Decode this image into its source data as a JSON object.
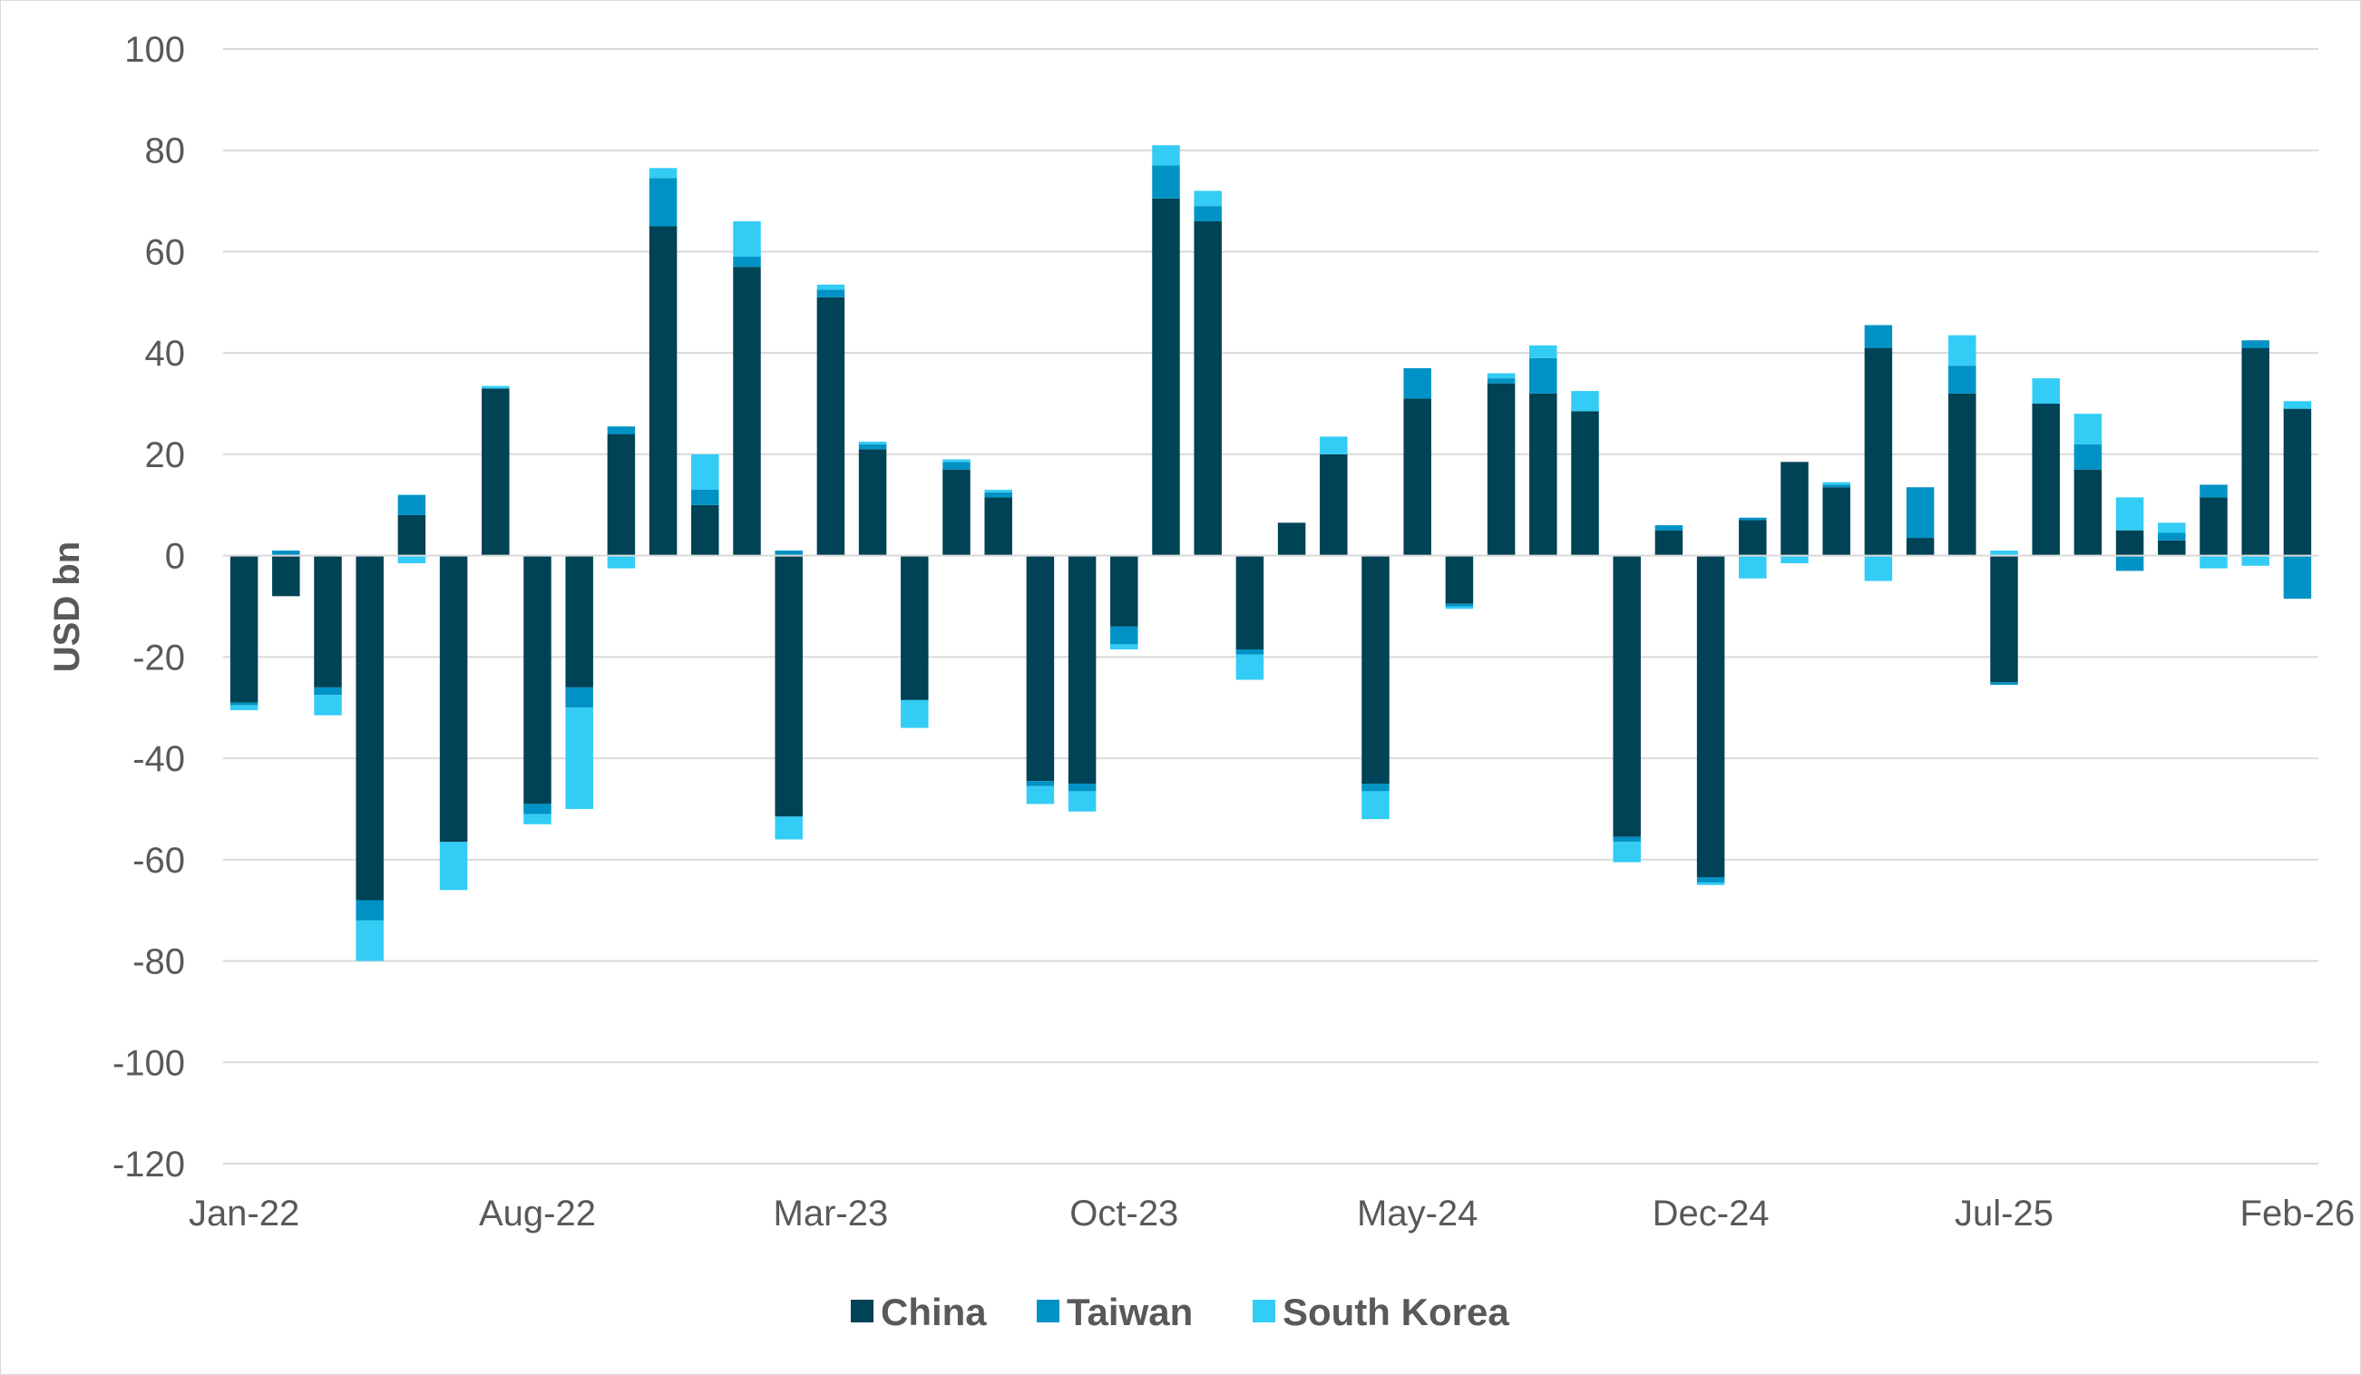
{
  "chart_data": {
    "type": "bar",
    "stacked": true,
    "title": "",
    "xlabel": "",
    "ylabel": "USD bn",
    "ylim": [
      -120,
      100
    ],
    "y_ticks": [
      100,
      80,
      60,
      40,
      20,
      0,
      -20,
      -40,
      -60,
      -80,
      -100,
      -120
    ],
    "grid": true,
    "legend_position": "bottom",
    "categories": [
      "Jan-22",
      "Feb-22",
      "Mar-22",
      "Apr-22",
      "May-22",
      "Jun-22",
      "Jul-22",
      "Aug-22",
      "Sep-22",
      "Oct-22",
      "Nov-22",
      "Dec-22",
      "Jan-23",
      "Feb-23",
      "Mar-23",
      "Apr-23",
      "May-23",
      "Jun-23",
      "Jul-23",
      "Aug-23",
      "Sep-23",
      "Oct-23",
      "Nov-23",
      "Dec-23",
      "Jan-24",
      "Feb-24",
      "Mar-24",
      "Apr-24",
      "May-24",
      "Jun-24",
      "Jul-24",
      "Aug-24",
      "Sep-24",
      "Oct-24",
      "Nov-24",
      "Dec-24",
      "Jan-25",
      "Feb-25",
      "Mar-25",
      "Apr-25",
      "May-25",
      "Jun-25",
      "Jul-25",
      "Aug-25",
      "Sep-25",
      "Oct-25",
      "Nov-25",
      "Dec-25",
      "Jan-26",
      "Feb-26"
    ],
    "x_tick_labels": [
      "Jan-22",
      "Aug-22",
      "Mar-23",
      "Oct-23",
      "May-24",
      "Dec-24",
      "Jul-25",
      "Feb-26"
    ],
    "series": [
      {
        "name": "China",
        "color": "#004256",
        "values": [
          -29,
          -8,
          -26,
          -68,
          8,
          -56.5,
          33,
          -49,
          -26,
          24,
          65,
          10,
          57,
          -51.5,
          51,
          21,
          -28.5,
          17,
          11.5,
          -44.5,
          -45,
          -14,
          70.5,
          66,
          -18.5,
          6.5,
          20,
          -45,
          31,
          -9.5,
          34,
          32,
          28.5,
          -55.5,
          5,
          -63.5,
          7,
          18.5,
          13.5,
          41,
          3.5,
          32,
          -25,
          30,
          17,
          5,
          3,
          11.5,
          41,
          29
        ]
      },
      {
        "name": "Taiwan",
        "color": "#0092C4",
        "values": [
          -0.5,
          1,
          -1.5,
          -4,
          4,
          0,
          0,
          -2,
          -4,
          1.5,
          9.5,
          3,
          2,
          1,
          1.5,
          1,
          0,
          1.5,
          1,
          -1,
          -1.5,
          -3.5,
          6.5,
          3,
          -1,
          0,
          0,
          -1.5,
          6,
          -0.5,
          1,
          7,
          0,
          -1,
          1,
          -1,
          0.5,
          0,
          0.5,
          4.5,
          10,
          5.5,
          -0.5,
          0,
          5,
          -3,
          1.5,
          2.5,
          1.5,
          -8.5
        ]
      },
      {
        "name": "South Korea",
        "color": "#33CCF5",
        "values": [
          -1,
          0,
          -4,
          -8,
          -1.5,
          -9.5,
          0.5,
          -2,
          -20,
          -2.5,
          2,
          7,
          7,
          -4.5,
          1,
          0.5,
          -5.5,
          0.5,
          0.5,
          -3.5,
          -4,
          -1,
          4,
          3,
          -5,
          0,
          3.5,
          -5.5,
          0,
          -0.5,
          1,
          2.5,
          4,
          -4,
          0,
          -0.5,
          -4.5,
          -1.5,
          0.5,
          -5,
          0,
          6,
          1,
          5,
          6,
          6.5,
          2,
          -2.5,
          -2,
          1.5
        ]
      }
    ]
  }
}
